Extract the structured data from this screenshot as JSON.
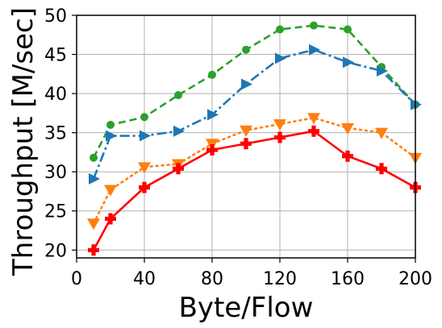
{
  "chart_data": {
    "type": "line",
    "xlabel": "Byte/Flow",
    "ylabel": "Throughput [M/sec]",
    "xlim": [
      0,
      200
    ],
    "ylim": [
      19,
      50
    ],
    "xticks": [
      0,
      40,
      80,
      120,
      160,
      200
    ],
    "yticks": [
      20,
      25,
      30,
      35,
      40,
      45,
      50
    ],
    "grid": true,
    "legend": "none",
    "series": [
      {
        "color": "#2ca02c",
        "linestyle": "dashed",
        "marker": "circle",
        "x": [
          10,
          20,
          40,
          60,
          80,
          100,
          120,
          140,
          160,
          180,
          200
        ],
        "y": [
          31.8,
          36.0,
          37.0,
          39.8,
          42.4,
          45.6,
          48.2,
          48.7,
          48.2,
          43.4,
          38.6
        ]
      },
      {
        "color": "#1f77b4",
        "linestyle": "dashdot",
        "marker": "triangle-right",
        "x": [
          10,
          20,
          40,
          60,
          80,
          100,
          120,
          140,
          160,
          180,
          200
        ],
        "y": [
          29.1,
          34.6,
          34.6,
          35.2,
          37.3,
          41.2,
          44.5,
          45.6,
          44.0,
          42.9,
          38.6
        ]
      },
      {
        "color": "#ff7f0e",
        "linestyle": "dotted",
        "marker": "triangle-down",
        "x": [
          10,
          20,
          40,
          60,
          80,
          100,
          120,
          140,
          160,
          180,
          200
        ],
        "y": [
          23.4,
          27.7,
          30.6,
          31.0,
          33.6,
          35.3,
          36.1,
          36.9,
          35.6,
          35.0,
          31.8
        ]
      },
      {
        "color": "#ff0000",
        "linestyle": "solid",
        "marker": "plus",
        "x": [
          10,
          20,
          40,
          60,
          80,
          100,
          120,
          140,
          160,
          180,
          200
        ],
        "y": [
          20.0,
          24.0,
          28.0,
          30.4,
          32.8,
          33.6,
          34.4,
          35.2,
          32.0,
          30.4,
          28.0
        ]
      }
    ]
  }
}
